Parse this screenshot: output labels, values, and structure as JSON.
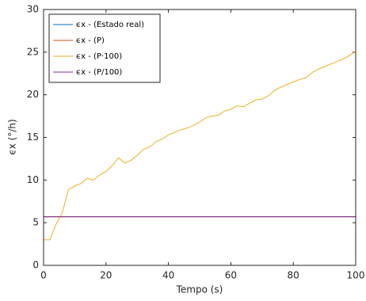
{
  "chart_data": {
    "type": "line",
    "x_label": "Tempo (s)",
    "y_label": "ϵx (°/h)",
    "xlim": [
      0,
      100
    ],
    "xticks": [
      0,
      20,
      40,
      60,
      80,
      100
    ],
    "ylim": [
      0,
      30
    ],
    "yticks": [
      0,
      5,
      10,
      15,
      20,
      25,
      30
    ],
    "legend": "upper left",
    "series": [
      {
        "name": "ϵx - (Estado real)",
        "color": "#0072bd",
        "x": [
          0,
          100
        ],
        "values": [
          5.7,
          5.7
        ]
      },
      {
        "name": "ϵx - (P)",
        "color": "#d95319",
        "x": [
          0,
          100
        ],
        "values": [
          5.7,
          5.7
        ]
      },
      {
        "name": "ϵx - (P·100)",
        "color": "#edb120",
        "x": [
          0,
          2,
          4,
          6,
          8,
          10,
          12,
          14,
          16,
          18,
          20,
          22,
          24,
          26,
          28,
          30,
          32,
          34,
          36,
          38,
          40,
          42,
          44,
          46,
          48,
          50,
          52,
          54,
          56,
          58,
          60,
          62,
          64,
          66,
          68,
          70,
          72,
          74,
          76,
          78,
          80,
          82,
          84,
          86,
          88,
          90,
          92,
          94,
          96,
          98,
          100
        ],
        "values": [
          3.0,
          3.0,
          4.8,
          6.2,
          8.9,
          9.3,
          9.6,
          10.2,
          10.0,
          10.6,
          11.0,
          11.7,
          12.6,
          12.0,
          12.3,
          12.9,
          13.6,
          13.9,
          14.5,
          14.8,
          15.3,
          15.6,
          15.9,
          16.1,
          16.4,
          16.8,
          17.3,
          17.5,
          17.6,
          18.1,
          18.3,
          18.7,
          18.6,
          19.0,
          19.4,
          19.5,
          19.9,
          20.5,
          20.9,
          21.2,
          21.5,
          21.8,
          22.0,
          22.6,
          23.0,
          23.3,
          23.6,
          23.9,
          24.2,
          24.6,
          25.1
        ]
      },
      {
        "name": "ϵx - (P/100)",
        "color": "#7e2f8e",
        "x": [
          0,
          100
        ],
        "values": [
          5.7,
          5.7
        ]
      }
    ]
  }
}
